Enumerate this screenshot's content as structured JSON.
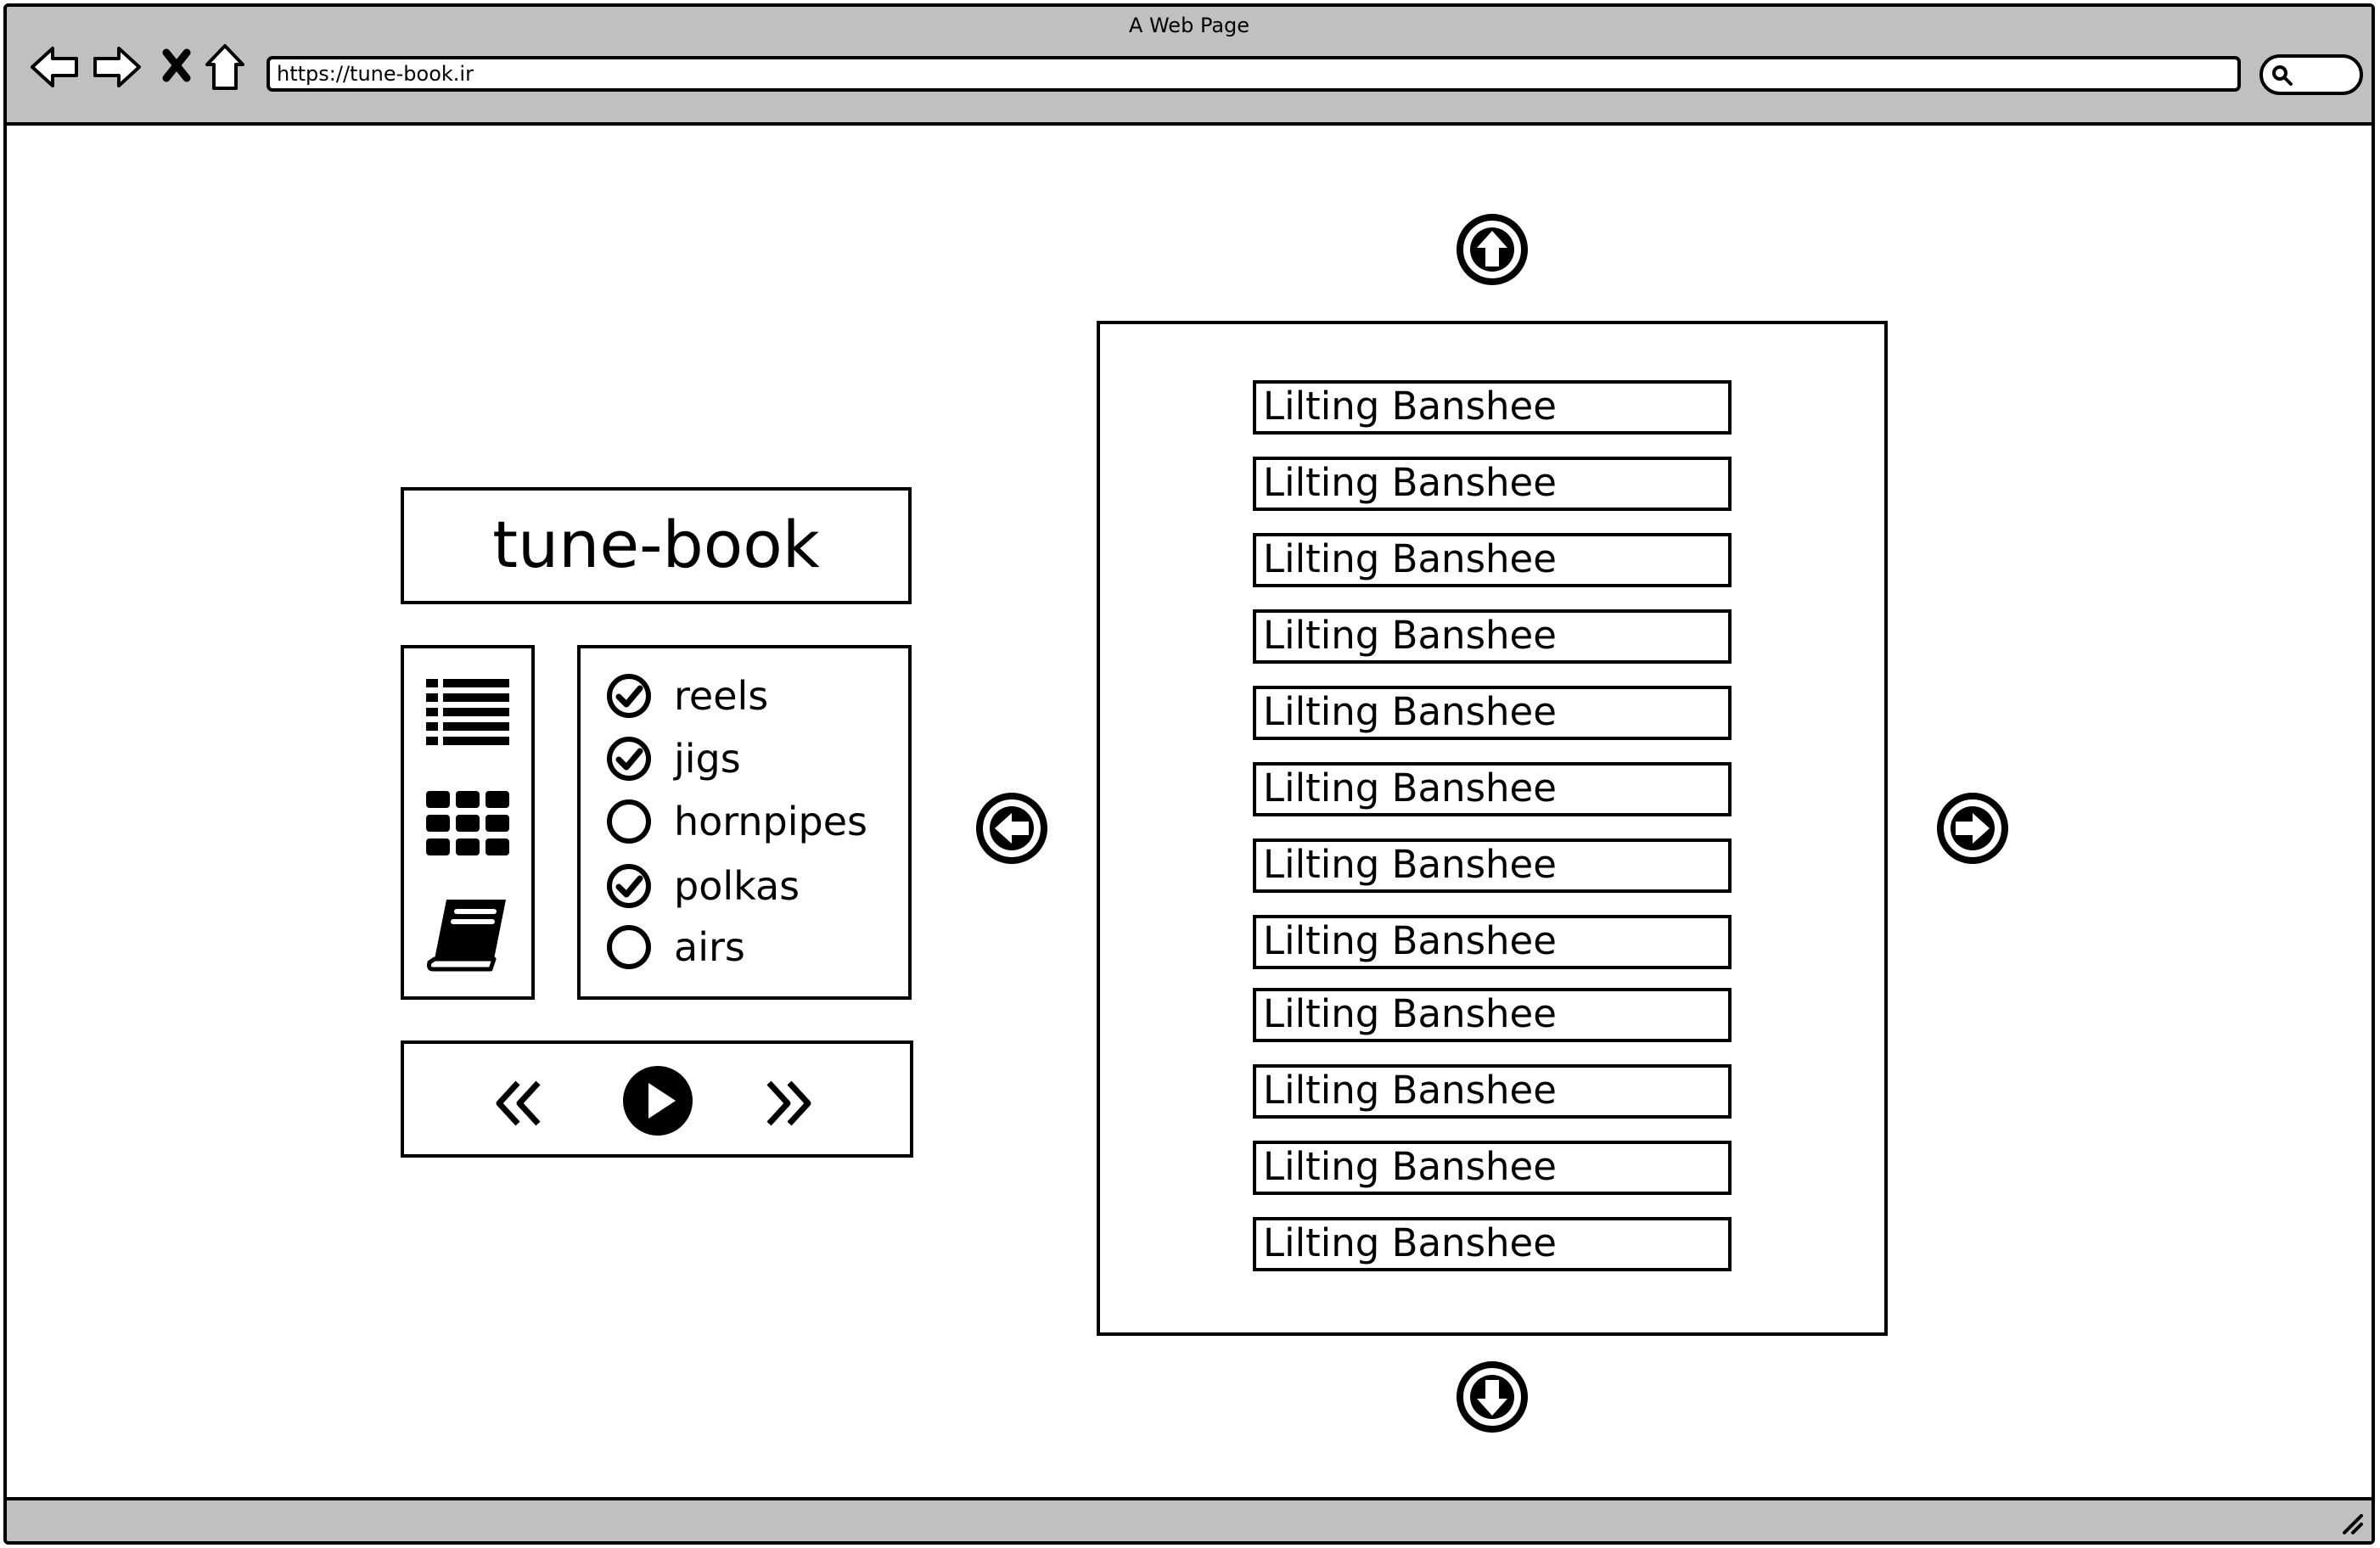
{
  "window": {
    "title": "A Web Page",
    "url": "https://tune-book.ir"
  },
  "app": {
    "logo": "tune-book"
  },
  "view_icons": [
    "list-view-icon",
    "grid-view-icon",
    "book-icon"
  ],
  "filters": [
    {
      "label": "reels",
      "checked": true
    },
    {
      "label": "jigs",
      "checked": true
    },
    {
      "label": "hornpipes",
      "checked": false
    },
    {
      "label": "polkas",
      "checked": true
    },
    {
      "label": "airs",
      "checked": false
    }
  ],
  "player": {
    "controls": [
      "rewind-icon",
      "play-icon",
      "fast-forward-icon"
    ]
  },
  "tunes": [
    "Lilting Banshee",
    "Lilting Banshee",
    "Lilting Banshee",
    "Lilting Banshee",
    "Lilting Banshee",
    "Lilting Banshee",
    "Lilting Banshee",
    "Lilting Banshee",
    "Lilting Banshee",
    "Lilting Banshee",
    "Lilting Banshee",
    "Lilting Banshee"
  ],
  "colors": {
    "chrome": "#c0c0c0",
    "ink": "#000000",
    "paper": "#ffffff"
  }
}
